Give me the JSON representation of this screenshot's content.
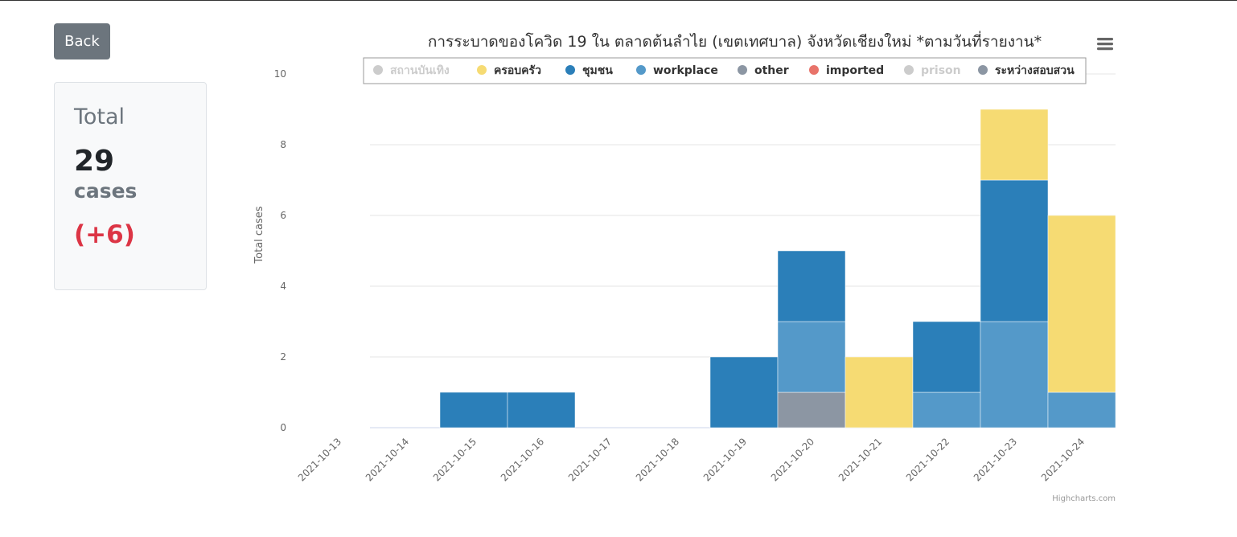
{
  "back_button": {
    "label": "Back"
  },
  "summary": {
    "title": "Total",
    "value": "29",
    "unit": "cases",
    "delta": "(+6)"
  },
  "credits": "Highcharts.com",
  "colors": {
    "สถานบันเทิง": "#cccccc",
    "ครอบครัว": "#f6db73",
    "ชุมชน": "#2b7fb9",
    "workplace": "#5499c9",
    "other": "#8c96a3",
    "imported": "#e8736a",
    "prison": "#cccccc",
    "ระหว่างสอบสวน": "#8c96a3"
  },
  "chart_data": {
    "type": "bar",
    "stacked": true,
    "title": "การระบาดของโควิด 19 ใน ตลาดต้นลำไย (เขตเทศบาล) จังหวัดเชียงใหม่ *ตามวันที่รายงาน*",
    "xlabel": "",
    "ylabel": "Total cases",
    "ylim": [
      0,
      10
    ],
    "yticks": [
      0,
      2,
      4,
      6,
      8,
      10
    ],
    "grid": true,
    "legend_position": "top",
    "categories": [
      "2021-10-13",
      "2021-10-14",
      "2021-10-15",
      "2021-10-16",
      "2021-10-17",
      "2021-10-18",
      "2021-10-19",
      "2021-10-20",
      "2021-10-21",
      "2021-10-22",
      "2021-10-23",
      "2021-10-24"
    ],
    "series": [
      {
        "name": "สถานบันเทิง",
        "hidden": true,
        "values": [
          0,
          0,
          0,
          0,
          0,
          0,
          0,
          0,
          0,
          0,
          0,
          0
        ]
      },
      {
        "name": "ครอบครัว",
        "values": [
          0,
          0,
          0,
          0,
          0,
          0,
          0,
          0,
          2,
          0,
          2,
          5
        ]
      },
      {
        "name": "ชุมชน",
        "values": [
          0,
          0,
          1,
          1,
          0,
          0,
          2,
          2,
          0,
          2,
          4,
          0
        ]
      },
      {
        "name": "workplace",
        "values": [
          0,
          0,
          0,
          0,
          0,
          0,
          0,
          2,
          0,
          1,
          3,
          1
        ]
      },
      {
        "name": "other",
        "values": [
          0,
          0,
          0,
          0,
          0,
          0,
          0,
          1,
          0,
          0,
          0,
          0
        ]
      },
      {
        "name": "imported",
        "values": [
          0,
          0,
          0,
          0,
          0,
          0,
          0,
          0,
          0,
          0,
          0,
          0
        ]
      },
      {
        "name": "prison",
        "hidden": true,
        "values": [
          0,
          0,
          0,
          0,
          0,
          0,
          0,
          0,
          0,
          0,
          0,
          0
        ]
      },
      {
        "name": "ระหว่างสอบสวน",
        "values": [
          0,
          0,
          0,
          0,
          0,
          0,
          0,
          0,
          0,
          0,
          0,
          0
        ]
      }
    ]
  }
}
